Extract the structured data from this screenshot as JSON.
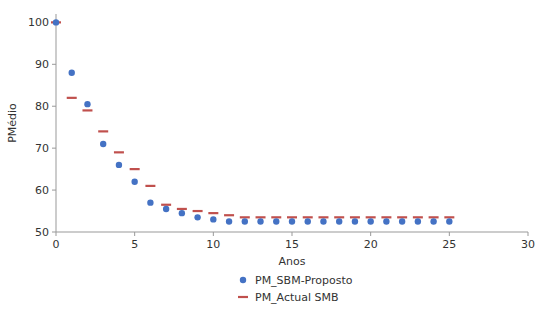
{
  "chart_data": {
    "type": "scatter",
    "title": "",
    "xlabel": "Anos",
    "ylabel": "PMédio",
    "xlim": [
      0,
      30
    ],
    "ylim": [
      50,
      102
    ],
    "xticks": [
      0,
      5,
      10,
      15,
      20,
      25,
      30
    ],
    "yticks": [
      50,
      60,
      70,
      80,
      90,
      100
    ],
    "grid": false,
    "legend": "bottom",
    "x": [
      0,
      1,
      2,
      3,
      4,
      5,
      6,
      7,
      8,
      9,
      10,
      11,
      12,
      13,
      14,
      15,
      16,
      17,
      18,
      19,
      20,
      21,
      22,
      23,
      24,
      25
    ],
    "series": [
      {
        "name": "PM_Actual SMB",
        "color": "#C0504D",
        "marker": "dash",
        "values": [
          100,
          82,
          79,
          74,
          69,
          65,
          61,
          56.5,
          55.5,
          55,
          54.5,
          54,
          53.5,
          53.5,
          53.5,
          53.5,
          53.5,
          53.5,
          53.5,
          53.5,
          53.5,
          53.5,
          53.5,
          53.5,
          53.5,
          53.5
        ]
      },
      {
        "name": "PM_SBM-Proposto",
        "color": "#4472C4",
        "marker": "circle",
        "values": [
          100,
          88,
          80.5,
          71,
          66,
          62,
          57,
          55.5,
          54.5,
          53.5,
          53,
          52.5,
          52.5,
          52.5,
          52.5,
          52.5,
          52.5,
          52.5,
          52.5,
          52.5,
          52.5,
          52.5,
          52.5,
          52.5,
          52.5,
          52.5
        ]
      }
    ]
  }
}
